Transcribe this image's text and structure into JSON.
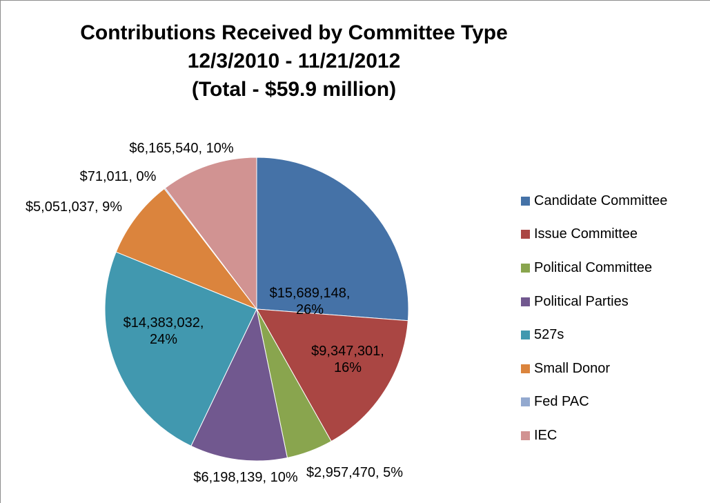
{
  "chart_data": {
    "type": "pie",
    "title_lines": [
      "Contributions Received by Committee Type",
      "12/3/2010 - 11/21/2012",
      "(Total - $59.9 million)"
    ],
    "categories": [
      "Candidate Committee",
      "Issue Committee",
      "Political Committee",
      "Political Parties",
      "527s",
      "Small Donor",
      "Fed PAC",
      "IEC"
    ],
    "values": [
      15689148,
      9347301,
      2957470,
      6198139,
      14383032,
      5051037,
      71011,
      6165540
    ],
    "data_labels": [
      [
        "$15,689,148,",
        "26%"
      ],
      [
        "$9,347,301,",
        "16%"
      ],
      [
        "$2,957,470, 5%"
      ],
      [
        "$6,198,139, 10%"
      ],
      [
        "$14,383,032,",
        "24%"
      ],
      [
        "$5,051,037, 9%"
      ],
      [
        "$71,011, 0%"
      ],
      [
        "$6,165,540, 10%"
      ]
    ],
    "colors": [
      "#4572A7",
      "#AA4643",
      "#89A54E",
      "#71588F",
      "#4198AF",
      "#DB843D",
      "#93A9CF",
      "#D19392"
    ],
    "legend_position": "right",
    "start_angle": "12 o'clock",
    "direction": "clockwise"
  }
}
